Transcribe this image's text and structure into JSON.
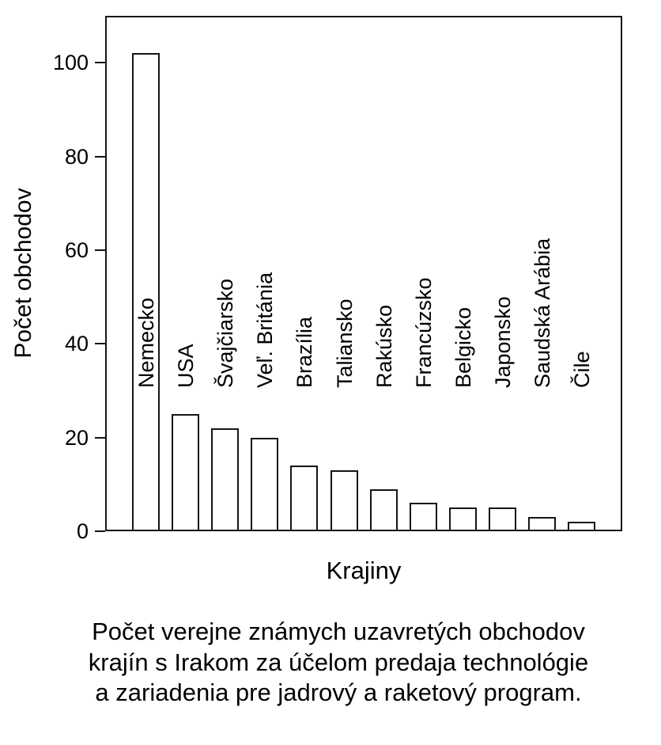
{
  "chart_data": {
    "type": "bar",
    "categories": [
      "Nemecko",
      "USA",
      "Švajčiarsko",
      "Veľ. Británia",
      "Brazília",
      "Taliansko",
      "Rakúsko",
      "Francúzsko",
      "Belgicko",
      "Japonsko",
      "Saudská Arábia",
      "Čile"
    ],
    "values": [
      102,
      25,
      22,
      20,
      14,
      13,
      9,
      6,
      5,
      5,
      3,
      2
    ],
    "title": "",
    "xlabel": "Krajiny",
    "ylabel": "Počet obchodov",
    "ylim": [
      0,
      110
    ],
    "yticks": [
      0,
      20,
      40,
      60,
      80,
      100
    ],
    "grid": false,
    "legend": "none",
    "bar_fill_color": "#ffffff",
    "bar_border_color": "#151515",
    "category_label_position": "rotated 90deg, bottom-aligned above/inside bars"
  },
  "caption": {
    "lines": [
      "Počet verejne známych uzavretých obchodov",
      "krajín s Irakom za účelom predaja technológie",
      "a zariadenia pre jadrový a raketový program."
    ]
  }
}
